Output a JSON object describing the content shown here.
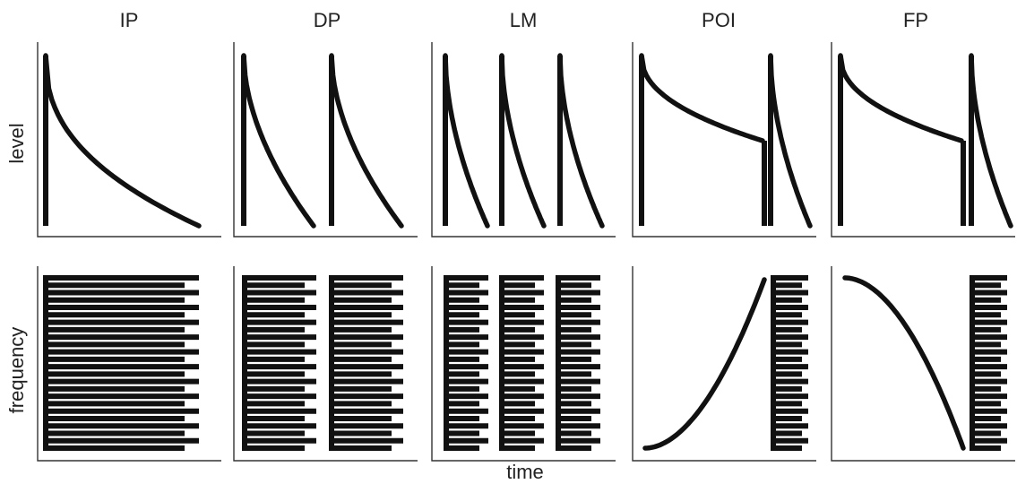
{
  "figure": {
    "columns": [
      {
        "id": "ip",
        "title": "IP"
      },
      {
        "id": "dp",
        "title": "DP"
      },
      {
        "id": "lm",
        "title": "LM"
      },
      {
        "id": "poi",
        "title": "POI"
      },
      {
        "id": "fp",
        "title": "FP"
      }
    ],
    "row_labels": {
      "level": "level",
      "frequency": "frequency"
    },
    "x_label": "time",
    "colors": {
      "ink": "#111111",
      "frame": "#333333",
      "background": "#ffffff"
    }
  }
}
